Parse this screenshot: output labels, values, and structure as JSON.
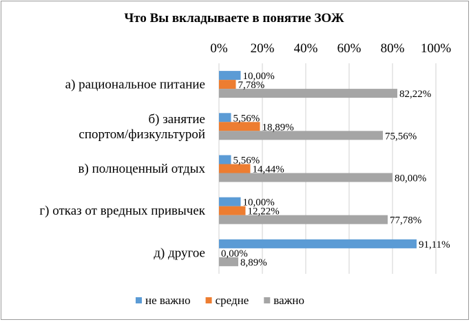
{
  "chart_data": {
    "type": "bar",
    "orientation": "horizontal",
    "title": "Что Вы вкладываете в понятие ЗОЖ",
    "xlim": [
      0,
      100
    ],
    "x_ticks": [
      "0%",
      "20%",
      "40%",
      "60%",
      "80%",
      "100%"
    ],
    "grid": true,
    "legend_position": "bottom",
    "categories": [
      [
        "а) рациональное питание"
      ],
      [
        "б) занятие",
        "спортом/физкультурой"
      ],
      [
        "в) полноценный отдых"
      ],
      [
        "г) отказ от вредных привычек"
      ],
      [
        "д) другое"
      ]
    ],
    "series": [
      {
        "name": "не важно",
        "color": "#5b9bd5",
        "values": [
          10.0,
          5.56,
          5.56,
          10.0,
          91.11
        ],
        "labels": [
          "10,00%",
          "5,56%",
          "5,56%",
          "10,00%",
          "91,11%"
        ]
      },
      {
        "name": "средне",
        "color": "#ed7d31",
        "values": [
          7.78,
          18.89,
          14.44,
          12.22,
          0.0
        ],
        "labels": [
          "7,78%",
          "18,89%",
          "14,44%",
          "12,22%",
          "0,00%"
        ]
      },
      {
        "name": "важно",
        "color": "#a5a5a5",
        "values": [
          82.22,
          75.56,
          80.0,
          77.78,
          8.89
        ],
        "labels": [
          "82,22%",
          "75,56%",
          "80,00%",
          "77,78%",
          "8,89%"
        ]
      }
    ]
  }
}
